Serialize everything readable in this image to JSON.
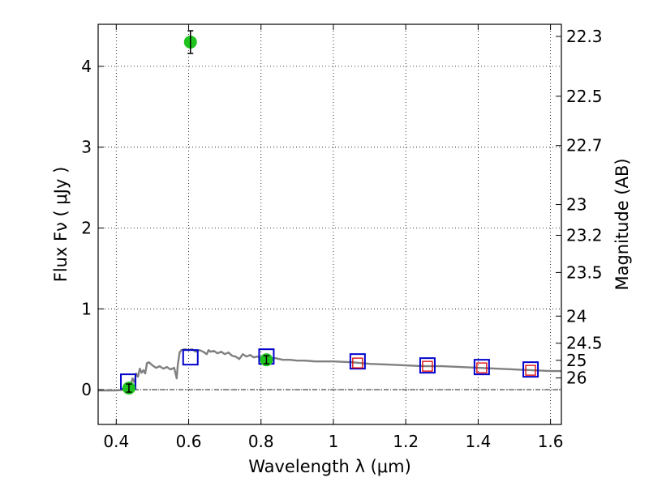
{
  "chart_data": {
    "type": "scatter",
    "xlabel": "Wavelength  λ (μm)",
    "ylabel": "Flux  Fν  ( μJy )",
    "y2label": "Magnitude (AB)",
    "xlim": [
      0.35,
      1.63
    ],
    "ylim": [
      -0.43,
      4.52
    ],
    "grid": true,
    "x_ticks": [
      {
        "value": 0.4,
        "label": "0.4"
      },
      {
        "value": 0.6,
        "label": "0.6"
      },
      {
        "value": 0.8,
        "label": "0.8"
      },
      {
        "value": 1.0,
        "label": "1"
      },
      {
        "value": 1.2,
        "label": "1.2"
      },
      {
        "value": 1.4,
        "label": "1.4"
      },
      {
        "value": 1.6,
        "label": "1.6"
      }
    ],
    "y_ticks": [
      {
        "value": 0,
        "label": "0"
      },
      {
        "value": 1,
        "label": "1"
      },
      {
        "value": 2,
        "label": "2"
      },
      {
        "value": 3,
        "label": "3"
      },
      {
        "value": 4,
        "label": "4"
      }
    ],
    "magnitude_ticks": [
      {
        "flux": 4.37,
        "label": "22.3"
      },
      {
        "flux": 3.63,
        "label": "22.5"
      },
      {
        "flux": 3.02,
        "label": "22.7"
      },
      {
        "flux": 2.29,
        "label": "23"
      },
      {
        "flux": 1.91,
        "label": "23.2"
      },
      {
        "flux": 1.45,
        "label": "23.5"
      },
      {
        "flux": 0.91,
        "label": "24"
      },
      {
        "flux": 0.575,
        "label": "24.5"
      },
      {
        "flux": 0.363,
        "label": "25"
      },
      {
        "flux": 0.145,
        "label": "26"
      }
    ],
    "observed_points": [
      {
        "x": 0.435,
        "y": 0.02,
        "yerr": 0.05
      },
      {
        "x": 0.605,
        "y": 4.3,
        "yerr": 0.14
      },
      {
        "x": 0.815,
        "y": 0.37,
        "yerr": 0.05
      }
    ],
    "model_photometry_blue": [
      {
        "x": 0.433,
        "y": 0.1
      },
      {
        "x": 0.605,
        "y": 0.4
      },
      {
        "x": 0.815,
        "y": 0.41
      },
      {
        "x": 1.067,
        "y": 0.35
      },
      {
        "x": 1.26,
        "y": 0.3
      },
      {
        "x": 1.41,
        "y": 0.28
      },
      {
        "x": 1.545,
        "y": 0.25
      }
    ],
    "model_photometry_red": [
      {
        "x": 1.067,
        "y": 0.33
      },
      {
        "x": 1.26,
        "y": 0.29
      },
      {
        "x": 1.41,
        "y": 0.27
      },
      {
        "x": 1.545,
        "y": 0.24
      }
    ],
    "sed_curve": [
      [
        0.35,
        -0.01
      ],
      [
        0.4,
        -0.01
      ],
      [
        0.43,
        0.0
      ],
      [
        0.44,
        0.06
      ],
      [
        0.445,
        0.14
      ],
      [
        0.45,
        0.09
      ],
      [
        0.455,
        0.2
      ],
      [
        0.46,
        0.16
      ],
      [
        0.465,
        0.26
      ],
      [
        0.47,
        0.21
      ],
      [
        0.475,
        0.24
      ],
      [
        0.48,
        0.2
      ],
      [
        0.485,
        0.33
      ],
      [
        0.49,
        0.34
      ],
      [
        0.5,
        0.3
      ],
      [
        0.51,
        0.27
      ],
      [
        0.52,
        0.29
      ],
      [
        0.53,
        0.26
      ],
      [
        0.54,
        0.28
      ],
      [
        0.55,
        0.25
      ],
      [
        0.56,
        0.27
      ],
      [
        0.565,
        0.18
      ],
      [
        0.567,
        0.14
      ],
      [
        0.57,
        0.3
      ],
      [
        0.575,
        0.46
      ],
      [
        0.58,
        0.49
      ],
      [
        0.59,
        0.5
      ],
      [
        0.6,
        0.49
      ],
      [
        0.61,
        0.5
      ],
      [
        0.62,
        0.47
      ],
      [
        0.63,
        0.49
      ],
      [
        0.64,
        0.47
      ],
      [
        0.65,
        0.44
      ],
      [
        0.655,
        0.49
      ],
      [
        0.66,
        0.47
      ],
      [
        0.67,
        0.48
      ],
      [
        0.68,
        0.45
      ],
      [
        0.69,
        0.47
      ],
      [
        0.7,
        0.44
      ],
      [
        0.71,
        0.46
      ],
      [
        0.72,
        0.42
      ],
      [
        0.73,
        0.41
      ],
      [
        0.74,
        0.38
      ],
      [
        0.75,
        0.44
      ],
      [
        0.76,
        0.41
      ],
      [
        0.77,
        0.43
      ],
      [
        0.78,
        0.4
      ],
      [
        0.79,
        0.41
      ],
      [
        0.8,
        0.4
      ],
      [
        0.82,
        0.39
      ],
      [
        0.84,
        0.39
      ],
      [
        0.86,
        0.37
      ],
      [
        0.88,
        0.37
      ],
      [
        0.9,
        0.36
      ],
      [
        0.92,
        0.36
      ],
      [
        0.95,
        0.35
      ],
      [
        1.0,
        0.35
      ],
      [
        1.05,
        0.34
      ],
      [
        1.1,
        0.32
      ],
      [
        1.15,
        0.31
      ],
      [
        1.2,
        0.3
      ],
      [
        1.25,
        0.29
      ],
      [
        1.3,
        0.29
      ],
      [
        1.35,
        0.28
      ],
      [
        1.4,
        0.27
      ],
      [
        1.45,
        0.26
      ],
      [
        1.5,
        0.25
      ],
      [
        1.55,
        0.24
      ],
      [
        1.6,
        0.23
      ],
      [
        1.63,
        0.23
      ]
    ]
  },
  "colors": {
    "observed": "#1ec31e",
    "blue_square": "#0000cc",
    "red_square": "#dd0000",
    "sed": "#808080",
    "grid": "#000000"
  }
}
